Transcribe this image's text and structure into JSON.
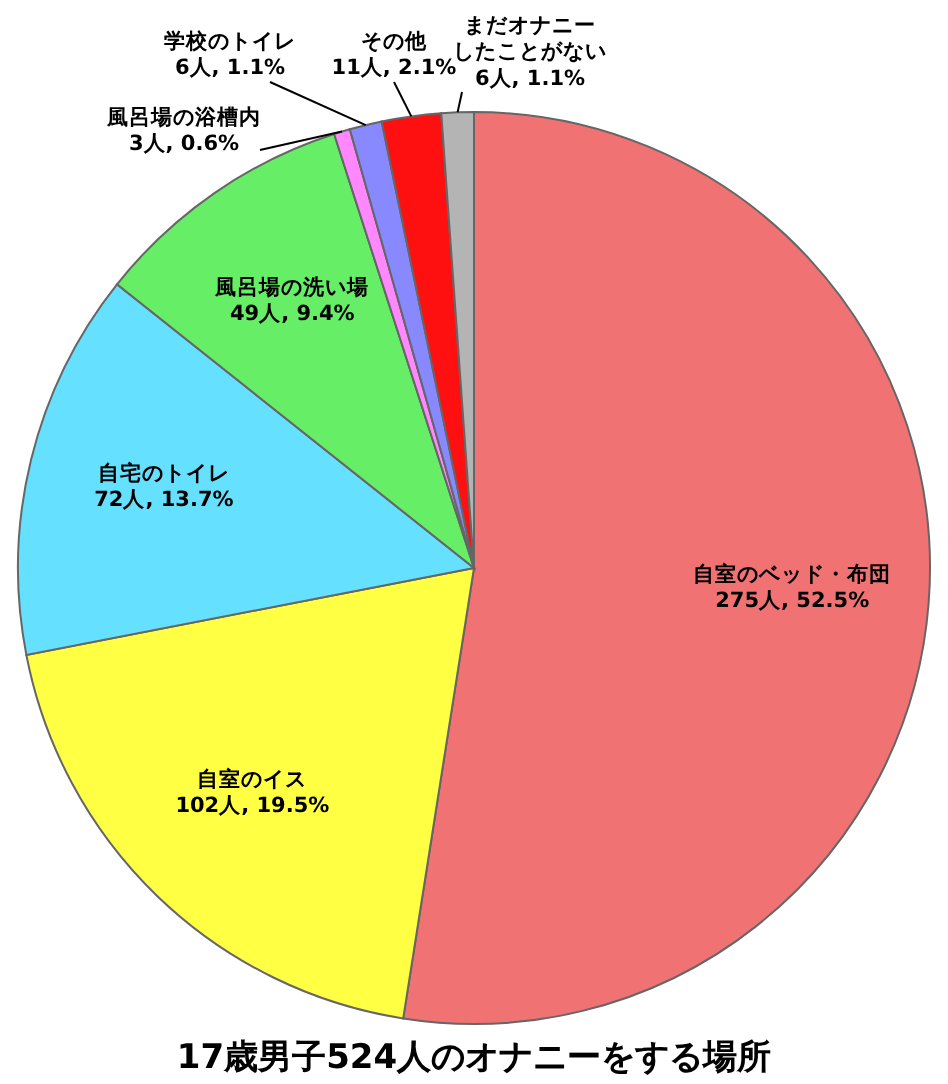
{
  "chart_data": {
    "type": "pie",
    "title": "17歳男子524人のオナニーをする場所",
    "categories": [
      "自室のベッド・布団",
      "自室のイス",
      "自宅のトイレ",
      "風呂場の洗い場",
      "風呂場の浴槽内",
      "学校のトイレ",
      "その他",
      "まだオナニーしたことがない"
    ],
    "values": [
      275,
      102,
      72,
      49,
      3,
      6,
      11,
      6
    ],
    "value_labels": [
      "275人, 52.5%",
      "102人, 19.5%",
      "72人, 13.7%",
      "49人, 9.4%",
      "3人, 0.6%",
      "6人, 1.1%",
      "11人, 2.1%",
      "6人, 1.1%"
    ],
    "colors": [
      "#f07272",
      "#ffff44",
      "#66e0ff",
      "#66ee66",
      "#ff88ff",
      "#8888ff",
      "#ff1010",
      "#b4b4b4"
    ]
  }
}
